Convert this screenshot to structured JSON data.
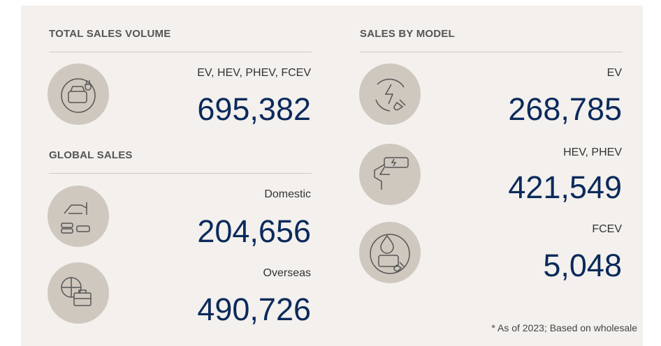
{
  "left": {
    "total": {
      "title": "TOTAL SALES VOLUME",
      "label": "EV, HEV, PHEV, FCEV",
      "value": "695,382"
    },
    "global": {
      "title": "GLOBAL SALES",
      "items": [
        {
          "label": "Domestic",
          "value": "204,656"
        },
        {
          "label": "Overseas",
          "value": "490,726"
        }
      ]
    }
  },
  "right": {
    "title": "SALES BY MODEL",
    "items": [
      {
        "label": "EV",
        "value": "268,785"
      },
      {
        "label": "HEV, PHEV",
        "value": "421,549"
      },
      {
        "label": "FCEV",
        "value": "5,048"
      }
    ]
  },
  "footnote": "* As of 2023; Based on wholesale"
}
